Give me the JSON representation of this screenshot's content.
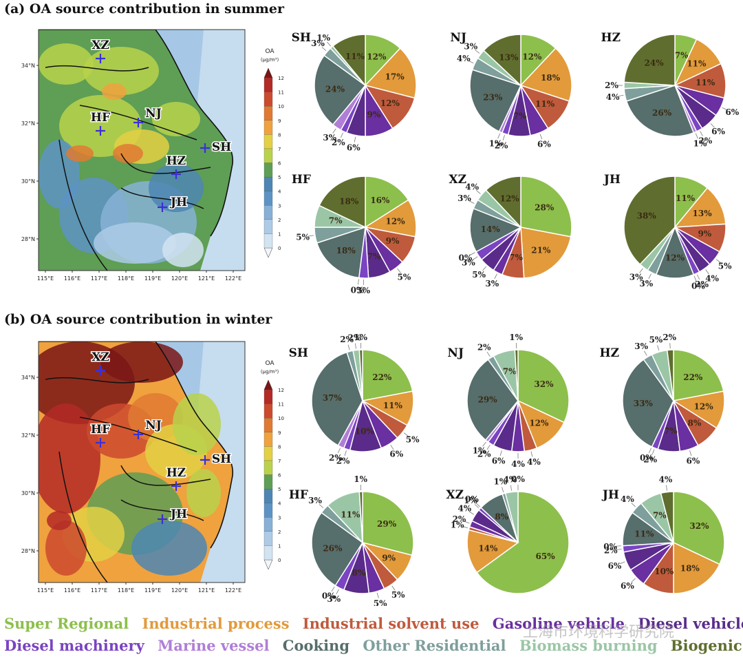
{
  "panels": [
    {
      "label": "(a) OA source contribution in summer",
      "season": "summer"
    },
    {
      "label": "(b) OA source contribution in winter",
      "season": "winter"
    }
  ],
  "colorbar": {
    "title": "OA",
    "unit": "(μg/m³)",
    "ticks": [
      "0",
      "1",
      "2",
      "3",
      "4",
      "5",
      "6",
      "7",
      "8",
      "9",
      "10",
      "11",
      "12"
    ],
    "colors": [
      "#f2f6fb",
      "#d2e3f2",
      "#adcbe6",
      "#87b1d6",
      "#5d93c4",
      "#4d86b3",
      "#5f9e55",
      "#b9d24b",
      "#e3d044",
      "#efa23e",
      "#e07a33",
      "#cc4a2e",
      "#b32a26",
      "#7a1616"
    ]
  },
  "map": {
    "lat_labels": [
      "34°N",
      "32°N",
      "30°N",
      "28°N"
    ],
    "lon_labels": [
      "115°E",
      "116°E",
      "117°E",
      "118°E",
      "119°E",
      "120°E",
      "121°E",
      "122°E"
    ],
    "cities": [
      "XZ",
      "HF",
      "NJ",
      "HZ",
      "SH",
      "JH"
    ]
  },
  "legend": [
    {
      "name": "Super Regional",
      "color": "#8dbf4c"
    },
    {
      "name": "Industrial process",
      "color": "#e29a3b"
    },
    {
      "name": "Industrial solvent use",
      "color": "#c05a3c"
    },
    {
      "name": "Gasoline vehicle",
      "color": "#6a2fa0"
    },
    {
      "name": "Diesel vehicle",
      "color": "#5a2b8a"
    },
    {
      "name": "Diesel machinery",
      "color": "#7a44c2"
    },
    {
      "name": "Marine vessel",
      "color": "#b07ed6"
    },
    {
      "name": "Cooking",
      "color": "#566e6c"
    },
    {
      "name": "Other Residential",
      "color": "#7e9f9c"
    },
    {
      "name": "Biomass burning",
      "color": "#9bc6a6"
    },
    {
      "name": "Biogenic",
      "color": "#5f6e2e"
    }
  ],
  "watermark": "上海市环境科学研究院",
  "chart_data": [
    {
      "type": "pie",
      "season": "summer",
      "city": "SH",
      "labels": [
        "12%",
        "17%",
        "12%",
        "9%",
        "6%",
        "2%",
        "3%",
        "24%",
        "3%",
        "1%",
        "11%"
      ],
      "values": [
        12,
        17,
        12,
        9,
        6,
        2,
        3,
        24,
        3,
        1,
        11
      ]
    },
    {
      "type": "pie",
      "season": "summer",
      "city": "NJ",
      "labels": [
        "12%",
        "18%",
        "11%",
        "6%",
        "7%",
        "2%",
        "1%",
        "23%",
        "4%",
        "3%",
        "13%"
      ],
      "values": [
        12,
        18,
        11,
        6,
        7,
        2,
        1,
        23,
        4,
        3,
        13
      ]
    },
    {
      "type": "pie",
      "season": "summer",
      "city": "HZ",
      "labels": [
        "7%",
        "11%",
        "11%",
        "6%",
        "6%",
        "2%",
        "1%",
        "26%",
        "4%",
        "2%",
        "24%"
      ],
      "values": [
        7,
        11,
        11,
        6,
        6,
        2,
        1,
        26,
        4,
        2,
        24
      ]
    },
    {
      "type": "pie",
      "season": "summer",
      "city": "HF",
      "labels": [
        "16%",
        "12%",
        "9%",
        "5%",
        "7%",
        "3%",
        "0%",
        "18%",
        "5%",
        "7%",
        "18%"
      ],
      "values": [
        16,
        12,
        9,
        5,
        7,
        3,
        0,
        18,
        5,
        7,
        18
      ]
    },
    {
      "type": "pie",
      "season": "summer",
      "city": "XZ",
      "labels": [
        "28%",
        "21%",
        "7%",
        "3%",
        "5%",
        "3%",
        "0%",
        "14%",
        "3%",
        "4%",
        "12%"
      ],
      "values": [
        28,
        21,
        7,
        3,
        5,
        3,
        0,
        14,
        3,
        4,
        12
      ]
    },
    {
      "type": "pie",
      "season": "summer",
      "city": "JH",
      "labels": [
        "11%",
        "13%",
        "9%",
        "5%",
        "4%",
        "2%",
        "0%",
        "12%",
        "3%",
        "3%",
        "38%"
      ],
      "values": [
        11,
        13,
        9,
        5,
        4,
        2,
        0,
        12,
        3,
        3,
        38
      ]
    },
    {
      "type": "pie",
      "season": "winter",
      "city": "SH",
      "labels": [
        "22%",
        "11%",
        "5%",
        "6%",
        "10%",
        "2%",
        "2%",
        "37%",
        "2%",
        "2%",
        "1%"
      ],
      "values": [
        22,
        11,
        5,
        6,
        10,
        2,
        2,
        37,
        2,
        2,
        1
      ]
    },
    {
      "type": "pie",
      "season": "winter",
      "city": "NJ",
      "labels": [
        "32%",
        "12%",
        "4%",
        "4%",
        "6%",
        "2%",
        "1%",
        "29%",
        "2%",
        "7%",
        "1%"
      ],
      "values": [
        32,
        12,
        4,
        4,
        6,
        2,
        1,
        29,
        2,
        7,
        1
      ]
    },
    {
      "type": "pie",
      "season": "winter",
      "city": "HZ",
      "labels": [
        "22%",
        "12%",
        "8%",
        "6%",
        "7%",
        "2%",
        "0%",
        "33%",
        "3%",
        "5%",
        "2%"
      ],
      "values": [
        22,
        12,
        8,
        6,
        7,
        2,
        0,
        33,
        3,
        5,
        2
      ]
    },
    {
      "type": "pie",
      "season": "winter",
      "city": "HF",
      "labels": [
        "29%",
        "9%",
        "5%",
        "5%",
        "8%",
        "3%",
        "0%",
        "26%",
        "3%",
        "11%",
        "1%"
      ],
      "values": [
        29,
        9,
        5,
        5,
        8,
        3,
        0,
        26,
        3,
        11,
        1
      ]
    },
    {
      "type": "pie",
      "season": "winter",
      "city": "XZ",
      "labels": [
        "65%",
        "14%",
        "1%",
        "2%",
        "4%",
        "1%",
        "0%",
        "8%",
        "1%",
        "4%",
        "0%"
      ],
      "values": [
        65,
        14,
        1,
        2,
        4,
        1,
        0,
        8,
        1,
        4,
        0
      ]
    },
    {
      "type": "pie",
      "season": "winter",
      "city": "JH",
      "labels": [
        "32%",
        "18%",
        "10%",
        "6%",
        "6%",
        "2%",
        "0%",
        "11%",
        "4%",
        "7%",
        "4%"
      ],
      "values": [
        32,
        18,
        10,
        6,
        6,
        2,
        0,
        11,
        4,
        7,
        4
      ]
    }
  ]
}
